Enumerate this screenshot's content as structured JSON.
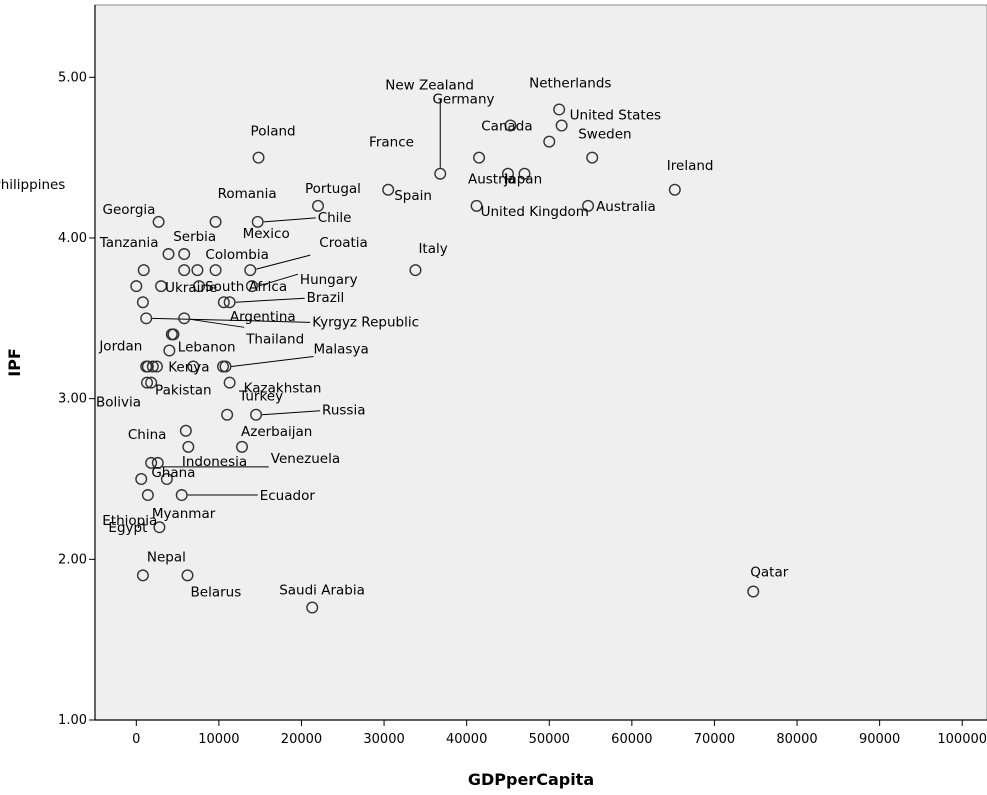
{
  "chart_data": {
    "type": "scatter",
    "title": "",
    "xlabel": "GDPperCapita",
    "ylabel": "IPF",
    "xlim": [
      -5000,
      103000
    ],
    "ylim": [
      1.0,
      5.45
    ],
    "x_ticks": [
      0,
      10000,
      20000,
      30000,
      40000,
      50000,
      60000,
      70000,
      80000,
      90000,
      100000
    ],
    "y_ticks": [
      "1.00",
      "2.00",
      "3.00",
      "4.00",
      "5.00"
    ],
    "grid": false,
    "legend": "none",
    "colors": {
      "plot_background": "#efefef",
      "marker_stroke": "#333333",
      "axis": "#000000"
    },
    "points": [
      {
        "label": "New Zealand",
        "x": 36800,
        "y": 4.4
      },
      {
        "label": "Netherlands",
        "x": 51200,
        "y": 4.8
      },
      {
        "label": "Germany",
        "x": 45300,
        "y": 4.7
      },
      {
        "label": "United States",
        "x": 51500,
        "y": 4.7
      },
      {
        "label": "Poland",
        "x": 14800,
        "y": 4.5
      },
      {
        "label": "France",
        "x": 41500,
        "y": 4.5
      },
      {
        "label": "Canada",
        "x": 50000,
        "y": 4.6
      },
      {
        "label": "Sweden",
        "x": 55200,
        "y": 4.5
      },
      {
        "label": "Ireland",
        "x": 65200,
        "y": 4.3
      },
      {
        "label": "Philippines",
        "x": 2700,
        "y": 4.1
      },
      {
        "label": "Portugal",
        "x": 22000,
        "y": 4.2
      },
      {
        "label": "Spain",
        "x": 30500,
        "y": 4.3
      },
      {
        "label": "Austria",
        "x": 45000,
        "y": 4.4
      },
      {
        "label": "Japan",
        "x": 47000,
        "y": 4.4
      },
      {
        "label": "United Kingdom",
        "x": 41200,
        "y": 4.2
      },
      {
        "label": "Australia",
        "x": 54700,
        "y": 4.2
      },
      {
        "label": "Georgia",
        "x": 3900,
        "y": 3.9
      },
      {
        "label": "Romania",
        "x": 9600,
        "y": 4.1
      },
      {
        "label": "Chile",
        "x": 14700,
        "y": 4.1
      },
      {
        "label": "Mexico",
        "x": 9600,
        "y": 3.8
      },
      {
        "label": "Croatia",
        "x": 13800,
        "y": 3.8
      },
      {
        "label": "Tanzania",
        "x": 900,
        "y": 3.8
      },
      {
        "label": "Serbia",
        "x": 5800,
        "y": 3.9
      },
      {
        "label": "Italy",
        "x": 33800,
        "y": 3.8
      },
      {
        "label": "Colombia",
        "x": 7400,
        "y": 3.8
      },
      {
        "label": "Hungary",
        "x": 14000,
        "y": 3.7
      },
      {
        "label": "Ukraine",
        "x": 3000,
        "y": 3.7
      },
      {
        "label": "South Africa",
        "x": 7600,
        "y": 3.7
      },
      {
        "label": "Brazil",
        "x": 11300,
        "y": 3.6
      },
      {
        "label": "Argentina",
        "x": 10600,
        "y": 3.6
      },
      {
        "label": "Kyrgyz Republic",
        "x": 1200,
        "y": 3.5
      },
      {
        "label": "Thailand",
        "x": 5800,
        "y": 3.5
      },
      {
        "label": "Lebanon",
        "x": 4300,
        "y": 3.4
      },
      {
        "label": "Jordan",
        "x": 4000,
        "y": 3.3
      },
      {
        "label": "Malasya",
        "x": 10800,
        "y": 3.2
      },
      {
        "label": "Kenya",
        "x": 1200,
        "y": 3.2
      },
      {
        "label": "Kazakhstan",
        "x": 11300,
        "y": 3.1
      },
      {
        "label": "Pakistan",
        "x": 1300,
        "y": 3.1
      },
      {
        "label": "Bolivia",
        "x": 2500,
        "y": 3.2
      },
      {
        "label": "Turkey",
        "x": 11000,
        "y": 2.9
      },
      {
        "label": "Russia",
        "x": 14500,
        "y": 2.9
      },
      {
        "label": "Ghana",
        "x": 6300,
        "y": 2.7
      },
      {
        "label": "China",
        "x": 6000,
        "y": 2.8
      },
      {
        "label": "Azerbaijan",
        "x": 12800,
        "y": 2.7
      },
      {
        "label": "Venezuela",
        "x": 2600,
        "y": 2.6
      },
      {
        "label": "Indonesia",
        "x": 3700,
        "y": 2.5
      },
      {
        "label": "Ecuador",
        "x": 5500,
        "y": 2.4
      },
      {
        "label": "Ethiopia",
        "x": 600,
        "y": 2.5
      },
      {
        "label": "Myanmar",
        "x": 1400,
        "y": 2.4
      },
      {
        "label": "Egypt",
        "x": 2800,
        "y": 2.2
      },
      {
        "label": "Nepal",
        "x": 800,
        "y": 1.9
      },
      {
        "label": "Belarus",
        "x": 6200,
        "y": 1.9
      },
      {
        "label": "Saudi Arabia",
        "x": 21300,
        "y": 1.7
      },
      {
        "label": "Qatar",
        "x": 74700,
        "y": 1.8
      },
      {
        "label": "",
        "x": 0,
        "y": 3.7
      },
      {
        "label": "",
        "x": 800,
        "y": 3.6
      },
      {
        "label": "",
        "x": 5800,
        "y": 3.8
      },
      {
        "label": "",
        "x": 4500,
        "y": 3.4
      },
      {
        "label": "",
        "x": 2000,
        "y": 3.2
      },
      {
        "label": "",
        "x": 6900,
        "y": 3.2
      },
      {
        "label": "",
        "x": 10500,
        "y": 3.2
      },
      {
        "label": "",
        "x": 1800,
        "y": 3.1
      },
      {
        "label": "",
        "x": 1800,
        "y": 2.6
      },
      {
        "label": "",
        "x": 1400,
        "y": 3.2
      }
    ]
  }
}
